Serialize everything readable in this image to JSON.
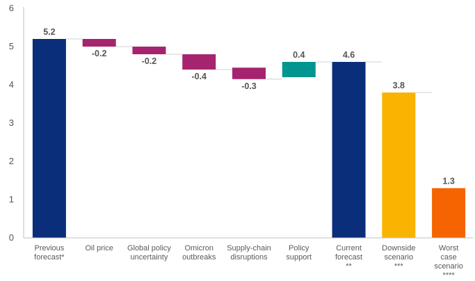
{
  "chart_data": {
    "type": "waterfall",
    "y_ticks": [
      "0",
      "1",
      "2",
      "3",
      "4",
      "5",
      "6"
    ],
    "ylim": [
      0,
      6
    ],
    "grid": false,
    "legend": "none",
    "categories": [
      {
        "label": [
          "Previous",
          "forecast*"
        ]
      },
      {
        "label": [
          "Oil price"
        ]
      },
      {
        "label": [
          "Global policy",
          "uncertainty"
        ]
      },
      {
        "label": [
          "Omicron",
          "outbreaks"
        ]
      },
      {
        "label": [
          "Supply-chain",
          "disruptions"
        ]
      },
      {
        "label": [
          "Policy",
          "support"
        ]
      },
      {
        "label": [
          "Current",
          "forecast",
          "**"
        ]
      },
      {
        "label": [
          "Downside",
          "scenario",
          "***"
        ]
      },
      {
        "label": [
          "Worst",
          "case",
          "scenario",
          "****"
        ]
      }
    ],
    "bars": [
      {
        "kind": "total",
        "value": 5.2,
        "base": 0,
        "label": "5.2",
        "color": "#0a2e7a"
      },
      {
        "kind": "delta",
        "value": -0.2,
        "base": 5.2,
        "label": "-0.2",
        "color": "#a6246f"
      },
      {
        "kind": "delta",
        "value": -0.2,
        "base": 5.0,
        "label": "-0.2",
        "color": "#a6246f"
      },
      {
        "kind": "delta",
        "value": -0.4,
        "base": 4.8,
        "label": "-0.4",
        "color": "#a6246f"
      },
      {
        "kind": "delta",
        "value": -0.3,
        "base": 4.45,
        "label": "-0.3",
        "color": "#a6246f"
      },
      {
        "kind": "delta",
        "value": 0.4,
        "base": 4.2,
        "label": "0.4",
        "color": "#00968f"
      },
      {
        "kind": "total",
        "value": 4.6,
        "base": 0,
        "label": "4.6",
        "color": "#0a2e7a"
      },
      {
        "kind": "total",
        "value": 3.8,
        "base": 0,
        "label": "3.8",
        "color": "#f8b400"
      },
      {
        "kind": "total",
        "value": 1.3,
        "base": 0,
        "label": "1.3",
        "color": "#f56400"
      }
    ],
    "colors": {
      "axis": "#bfbfbf",
      "connector": "#d0d0d0"
    }
  }
}
